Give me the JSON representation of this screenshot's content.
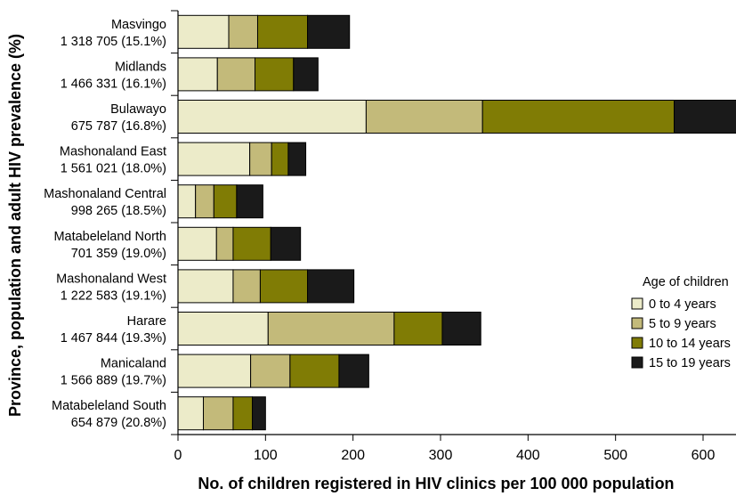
{
  "chart_data": {
    "type": "bar",
    "orientation": "horizontal",
    "stacked": true,
    "xlabel": "No. of children registered in HIV clinics per 100 000 population",
    "ylabel": "Province, population and adult HIV prevalence (%)",
    "xlim": [
      0,
      640
    ],
    "xticks": [
      "0",
      "100",
      "200",
      "300",
      "400",
      "500",
      "600"
    ],
    "grid": false,
    "legend_position": "right",
    "legend_title": "Age of children",
    "categories": [
      {
        "name": "Masvingo",
        "detail": "1 318 705 (15.1%)"
      },
      {
        "name": "Midlands",
        "detail": "1 466 331 (16.1%)"
      },
      {
        "name": "Bulawayo",
        "detail": "675 787 (16.8%)"
      },
      {
        "name": "Mashonaland East",
        "detail": "1 561 021 (18.0%)"
      },
      {
        "name": "Mashonaland Central",
        "detail": "998 265 (18.5%)"
      },
      {
        "name": "Matabeleland North",
        "detail": "701 359 (19.0%)"
      },
      {
        "name": "Mashonaland West",
        "detail": "1 222 583 (19.1%)"
      },
      {
        "name": "Harare",
        "detail": "1 467 844 (19.3%)"
      },
      {
        "name": "Manicaland",
        "detail": "1 566 889 (19.7%)"
      },
      {
        "name": "Matabeleland South",
        "detail": "654 879 (20.8%)"
      }
    ],
    "series": [
      {
        "name": "0 to 4 years",
        "color": "#ecebc9",
        "values": [
          58,
          45,
          215,
          82,
          20,
          44,
          63,
          103,
          83,
          29
        ]
      },
      {
        "name": "5 to 9 years",
        "color": "#c3ba7a",
        "values": [
          33,
          43,
          133,
          25,
          21,
          19,
          31,
          144,
          45,
          34
        ]
      },
      {
        "name": "10 to 14 years",
        "color": "#807c05",
        "values": [
          57,
          44,
          219,
          19,
          26,
          43,
          54,
          55,
          56,
          22
        ]
      },
      {
        "name": "15 to 19 years",
        "color": "#1a1a1a",
        "values": [
          48,
          28,
          79,
          20,
          30,
          34,
          53,
          44,
          34,
          15
        ]
      }
    ]
  }
}
